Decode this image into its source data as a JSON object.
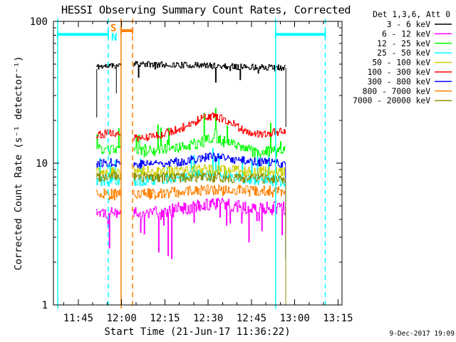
{
  "chart_data": {
    "type": "line",
    "title": "HESSI Observing Summary Count Rates, Corrected",
    "xlabel": "Start Time (21-Jun-17 11:36:22)",
    "ylabel": "Corrected Count Rate (s⁻¹ detector⁻¹)",
    "timestamp": "9-Dec-2017 19:09",
    "x_axis": {
      "unit": "minutes since 11:36:22",
      "range": [
        0,
        100
      ],
      "minor_step": 5,
      "minor_offset": 3.633,
      "major_ticks": [
        {
          "t": 8.633,
          "label": "11:45"
        },
        {
          "t": 23.633,
          "label": "12:00"
        },
        {
          "t": 38.633,
          "label": "12:15"
        },
        {
          "t": 53.633,
          "label": "12:30"
        },
        {
          "t": 68.633,
          "label": "12:45"
        },
        {
          "t": 83.633,
          "label": "13:00"
        },
        {
          "t": 98.633,
          "label": "13:15"
        }
      ]
    },
    "y_axis": {
      "scale": "log",
      "range": [
        1,
        100
      ],
      "major_ticks": [
        {
          "v": 1,
          "label": "1"
        },
        {
          "v": 10,
          "label": "10"
        },
        {
          "v": 100,
          "label": "100"
        }
      ]
    },
    "legend": {
      "header": "Det 1,3,6, Att 0",
      "entries": [
        {
          "label": "3 - 6 keV",
          "color": "#000000"
        },
        {
          "label": "6 - 12 keV",
          "color": "#FF00FF"
        },
        {
          "label": "12 - 25 keV",
          "color": "#00FF00"
        },
        {
          "label": "25 - 50 keV",
          "color": "#00FFFF"
        },
        {
          "label": "50 - 100 keV",
          "color": "#CFCF00"
        },
        {
          "label": "100 - 300 keV",
          "color": "#FF0000"
        },
        {
          "label": "300 - 800 keV",
          "color": "#0000FF"
        },
        {
          "label": "800 - 7000 keV",
          "color": "#FF8000"
        },
        {
          "label": "7000 - 20000 keV",
          "color": "#8F8F00"
        }
      ]
    },
    "sample_step_min": 0.25,
    "data_segments": [
      [
        14.8,
        23.45
      ],
      [
        27.65,
        80.6
      ]
    ],
    "series": [
      {
        "name": "3 - 6 keV",
        "color": "#000000",
        "seed": 11,
        "noise": 0.05,
        "trend": [
          [
            14.8,
            48
          ],
          [
            23.45,
            49
          ],
          [
            27.65,
            50
          ],
          [
            50,
            49
          ],
          [
            80.6,
            47
          ]
        ],
        "spikes": {
          "dir": -1,
          "prob": 0.03,
          "max_factor": 0.78
        }
      },
      {
        "name": "6 - 12 keV",
        "color": "#FF00FF",
        "seed": 22,
        "noise": 0.11,
        "trend": [
          [
            14.8,
            4.6
          ],
          [
            23.45,
            4.5
          ],
          [
            27.65,
            4.4
          ],
          [
            50,
            5.0
          ],
          [
            56,
            5.2
          ],
          [
            65,
            4.9
          ],
          [
            80.6,
            4.8
          ]
        ],
        "spikes": {
          "dir": -1,
          "prob": 0.13,
          "max_factor": 0.45
        }
      },
      {
        "name": "12 - 25 keV",
        "color": "#00FF00",
        "seed": 33,
        "noise": 0.09,
        "trend": [
          [
            14.8,
            12.5
          ],
          [
            23.45,
            12.3
          ],
          [
            27.65,
            11.8
          ],
          [
            45,
            13
          ],
          [
            53,
            14.5
          ],
          [
            57,
            14.8
          ],
          [
            62,
            13.5
          ],
          [
            70,
            12
          ],
          [
            80.6,
            12.2
          ]
        ],
        "spikes": {
          "dir": 1,
          "prob": 0.07,
          "max_factor": 1.55
        }
      },
      {
        "name": "25 - 50 keV",
        "color": "#00FFFF",
        "seed": 44,
        "noise": 0.09,
        "trend": [
          [
            14.8,
            7.6
          ],
          [
            27.65,
            7.4
          ],
          [
            50,
            8.2
          ],
          [
            56,
            8.4
          ],
          [
            65,
            7.8
          ],
          [
            80.6,
            7.5
          ]
        ],
        "spikes": {
          "dir": 1,
          "prob": 0.06,
          "max_factor": 1.5
        }
      },
      {
        "name": "50 - 100 keV",
        "color": "#CFCF00",
        "seed": 55,
        "noise": 0.09,
        "trend": [
          [
            14.8,
            8.8
          ],
          [
            27.65,
            8.7
          ],
          [
            55,
            9.0
          ],
          [
            80.6,
            8.6
          ]
        ]
      },
      {
        "name": "100 - 300 keV",
        "color": "#FF0000",
        "seed": 66,
        "noise": 0.065,
        "trend": [
          [
            14.8,
            16
          ],
          [
            23.45,
            16.5
          ],
          [
            27.65,
            14.8
          ],
          [
            35,
            15.5
          ],
          [
            45,
            18
          ],
          [
            52,
            21
          ],
          [
            56,
            21.5
          ],
          [
            61,
            19.5
          ],
          [
            66,
            17
          ],
          [
            72,
            16
          ],
          [
            80.6,
            17
          ]
        ]
      },
      {
        "name": "300 - 800 keV",
        "color": "#0000FF",
        "seed": 77,
        "noise": 0.07,
        "trend": [
          [
            14.8,
            10
          ],
          [
            23.45,
            10.2
          ],
          [
            27.65,
            9.8
          ],
          [
            45,
            10.3
          ],
          [
            54,
            11.2
          ],
          [
            62,
            10.6
          ],
          [
            80.6,
            9.9
          ]
        ]
      },
      {
        "name": "800 - 7000 keV",
        "color": "#FF8000",
        "seed": 88,
        "noise": 0.09,
        "trend": [
          [
            14.8,
            6.1
          ],
          [
            27.65,
            6.0
          ],
          [
            55,
            6.5
          ],
          [
            80.6,
            6.3
          ]
        ]
      },
      {
        "name": "7000 - 20000 keV",
        "color": "#8F8F00",
        "seed": 99,
        "noise": 0.08,
        "trend": [
          [
            14.8,
            8.1
          ],
          [
            27.65,
            8.0
          ],
          [
            80.6,
            7.8
          ]
        ]
      }
    ],
    "event_lines": [
      {
        "t": 1.5,
        "color": "#00FFFF",
        "style": "solid",
        "meaning": "night start"
      },
      {
        "t": 19.0,
        "color": "#00FFFF",
        "style": "dashed",
        "meaning": "night end"
      },
      {
        "t": 23.45,
        "color": "#FF8000",
        "style": "solid",
        "meaning": "SAA start"
      },
      {
        "t": 27.4,
        "color": "#FF8000",
        "style": "dashed",
        "meaning": "SAA end"
      },
      {
        "t": 77.0,
        "color": "#00FFFF",
        "style": "solid",
        "meaning": "night start"
      },
      {
        "t": 94.2,
        "color": "#00FFFF",
        "style": "dashed",
        "meaning": "night end"
      }
    ],
    "activity_bars": [
      {
        "t1": 1.5,
        "t2": 19.0,
        "value": 81,
        "color": "#00FFFF",
        "meaning": "night"
      },
      {
        "t1": 77.0,
        "t2": 94.2,
        "value": 81,
        "color": "#00FFFF",
        "meaning": "night"
      },
      {
        "t1": 23.45,
        "t2": 27.4,
        "value": 86,
        "color": "#FF8000",
        "meaning": "SAA"
      }
    ],
    "artifact_lines": [
      {
        "t": 15.0,
        "color": "#000000",
        "v1": 21,
        "v2": 46
      },
      {
        "t": 21.8,
        "color": "#000000",
        "v1": 49,
        "v2": 31
      },
      {
        "t": 80.55,
        "color": "#000000",
        "v1": 47,
        "v2": 18
      },
      {
        "t": 80.45,
        "color": "#0000FF",
        "v1": 9.5,
        "v2": 2.1
      },
      {
        "t": 80.5,
        "color": "#8F8F00",
        "v1": 7.8,
        "v2": 1.0
      }
    ],
    "annotations": [
      {
        "text": "S",
        "color": "#FF8000",
        "x": 155,
        "y": 44
      },
      {
        "text": "N",
        "color": "#00FFFF",
        "x": 156,
        "y": 57
      }
    ]
  },
  "colors": {
    "background": "#FFFFFF",
    "axis": "#000000",
    "night": "#00FFFF",
    "saa": "#FF8000"
  }
}
